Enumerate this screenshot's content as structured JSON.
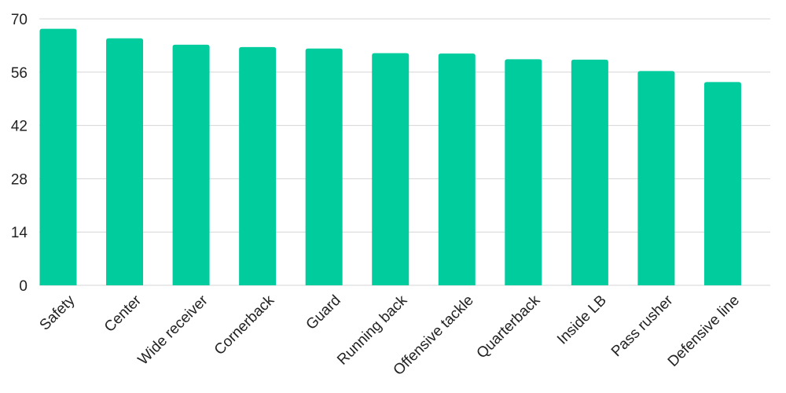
{
  "chart_data": {
    "type": "bar",
    "title": "",
    "xlabel": "",
    "ylabel": "",
    "categories": [
      "Safety",
      "Center",
      "Wide receiver",
      "Cornerback",
      "Guard",
      "Running back",
      "Offensive tackle",
      "Quarterback",
      "Inside LB",
      "Pass rusher",
      "Defensive line"
    ],
    "values": [
      67.4,
      64.9,
      63.2,
      62.6,
      62.2,
      61.0,
      60.9,
      59.4,
      59.3,
      56.3,
      53.4
    ],
    "ylim": [
      0,
      70
    ],
    "yticks": [
      "0",
      "14",
      "28",
      "42",
      "56",
      "70"
    ],
    "grid": true,
    "legend": "none",
    "colors": {
      "bar": "#00cc9e",
      "grid": "#d6d6d6",
      "text": "#222222"
    }
  }
}
